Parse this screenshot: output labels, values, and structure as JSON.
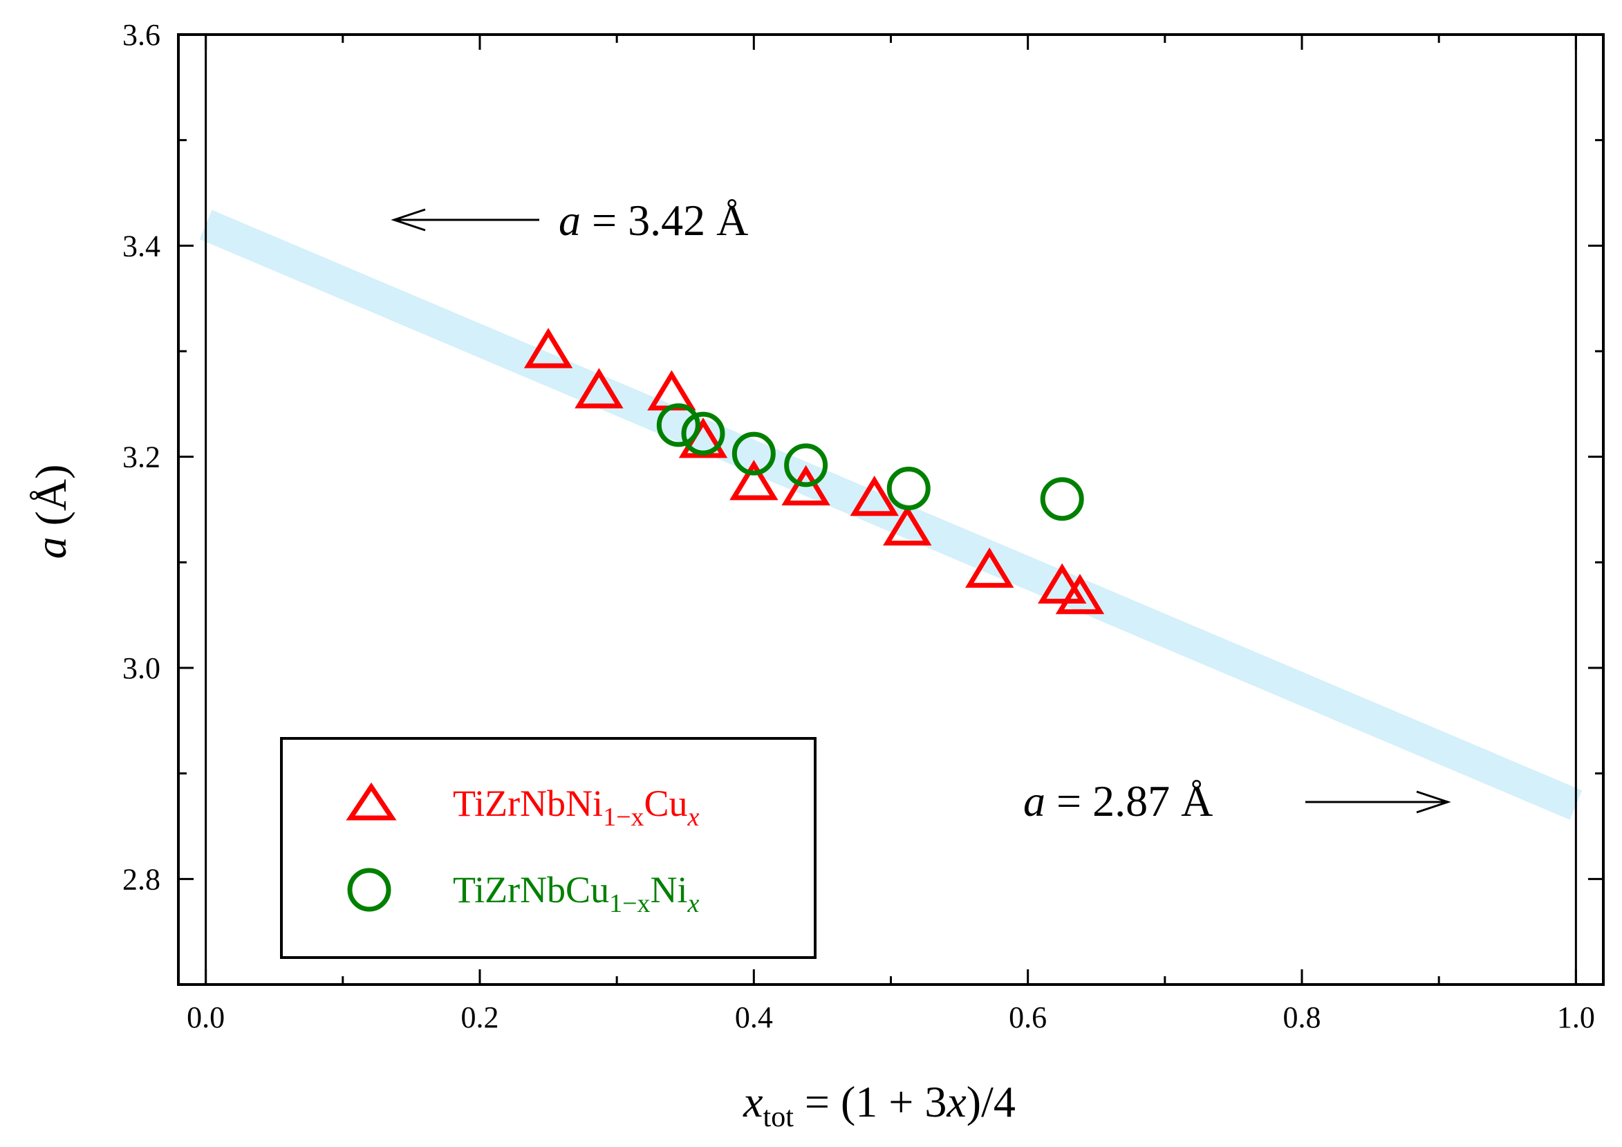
{
  "chart_data": {
    "type": "scatter",
    "xlim": [
      -0.02,
      1.02
    ],
    "ylim": [
      2.7,
      3.6
    ],
    "x_ticks": [
      0.0,
      0.2,
      0.4,
      0.6,
      0.8,
      1.0
    ],
    "x_tick_labels": [
      "0.0",
      "0.2",
      "0.4",
      "0.6",
      "0.8",
      "1.0"
    ],
    "y_ticks": [
      2.8,
      3.0,
      3.2,
      3.4,
      3.6
    ],
    "y_tick_labels": [
      "2.8",
      "3.0",
      "3.2",
      "3.4",
      "3.6"
    ],
    "x_minor_step": 0.1,
    "y_minor_step": 0.1,
    "xlabel": {
      "main": "x",
      "sub": "tot",
      "rest_1": " = (1 + 3",
      "var": "x",
      "rest_2": ")/4"
    },
    "ylabel": {
      "var": "a",
      "rest": " (Å)"
    },
    "reference_lines_x": [
      0.0,
      1.0
    ],
    "trend_band": {
      "x": [
        0.0,
        1.0
      ],
      "y": [
        3.42,
        2.87
      ],
      "color": "#d4f0fa"
    },
    "annotations": [
      {
        "var": "a",
        "text": " = 3.42 Å",
        "arrow": "left"
      },
      {
        "var": "a",
        "text": " = 2.87 Å",
        "arrow": "right"
      }
    ],
    "series": [
      {
        "name": "TiZrNbNi1−xCux",
        "marker": "triangle",
        "color": "#ff0000",
        "x": [
          0.25,
          0.287,
          0.34,
          0.363,
          0.4,
          0.438,
          0.488,
          0.512,
          0.572,
          0.625,
          0.638
        ],
        "y": [
          3.298,
          3.26,
          3.258,
          3.213,
          3.173,
          3.168,
          3.158,
          3.13,
          3.09,
          3.075,
          3.065
        ]
      },
      {
        "name": "TiZrNbCu1−xNix",
        "marker": "circle",
        "color": "#008000",
        "x": [
          0.345,
          0.363,
          0.4,
          0.438,
          0.513,
          0.625
        ],
        "y": [
          3.23,
          3.222,
          3.203,
          3.192,
          3.17,
          3.16
        ]
      }
    ],
    "legend": {
      "position": "lower-left",
      "entries": [
        {
          "base": "TiZrNbNi",
          "sub1": "1−x",
          "mid": "Cu",
          "sub2": "x",
          "color": "#ff0000",
          "marker": "triangle"
        },
        {
          "base": "TiZrNbCu",
          "sub1": "1−x",
          "mid": "Ni",
          "sub2": "x",
          "color": "#008000",
          "marker": "circle"
        }
      ]
    }
  }
}
